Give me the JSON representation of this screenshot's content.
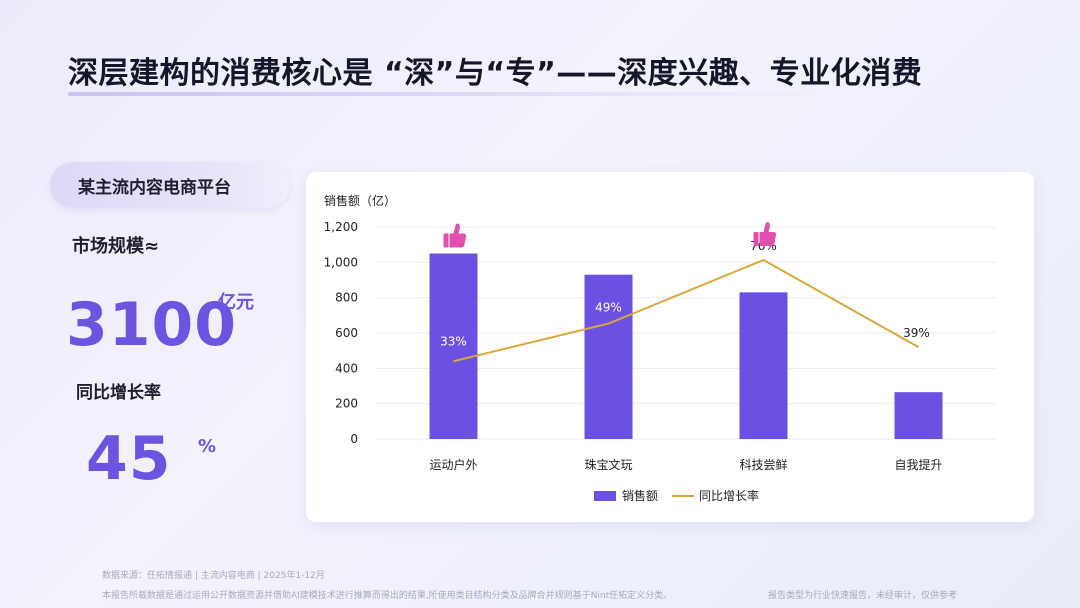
{
  "title": "深层建构的消费核心是 “深”与“专”——深度兴趣、专业化消费",
  "platform": "某主流内容电商平台",
  "market": {
    "label": "市场规模≈",
    "value": "3100",
    "unit": "亿元"
  },
  "growth": {
    "label": "同比增长率",
    "value": "45",
    "unit": "%"
  },
  "footer": {
    "source": "数据来源：任拓情报通 | 主流内容电商 | 2025年1-12月",
    "note": "本报告所载数据是通过运用公开数据资源并借助AI建模技术进行推算而得出的结果,所使用类目结构分类及品牌合并规则基于Nint任拓定义分类。",
    "disclaimer": "报告类型为行业快速报告，未经审计，仅供参考"
  },
  "chart_data": {
    "type": "bar",
    "ylabel": "销售额（亿）",
    "ylim": [
      0,
      1200
    ],
    "yticks": [
      "0",
      "200",
      "400",
      "600",
      "800",
      "1,000",
      "1,200"
    ],
    "categories": [
      "运动户外",
      "珠宝文玩",
      "科技尝鲜",
      "自我提升"
    ],
    "series": [
      {
        "name": "销售额",
        "type": "bar",
        "values": [
          1050,
          930,
          830,
          265
        ],
        "color": "#6c50e2"
      },
      {
        "name": "同比增长率",
        "type": "line",
        "values": [
          33,
          49,
          76,
          39
        ],
        "labels": [
          "33%",
          "49%",
          "76%",
          "39%"
        ],
        "color": "#d8a93a"
      }
    ],
    "highlight_icons": [
      "thumbs-up-icon",
      "thumbs-up-icon"
    ],
    "highlight_categories": [
      "运动户外",
      "科技尝鲜"
    ],
    "highlight_color": "#e24fae",
    "legend_position": "bottom",
    "grid": true
  }
}
